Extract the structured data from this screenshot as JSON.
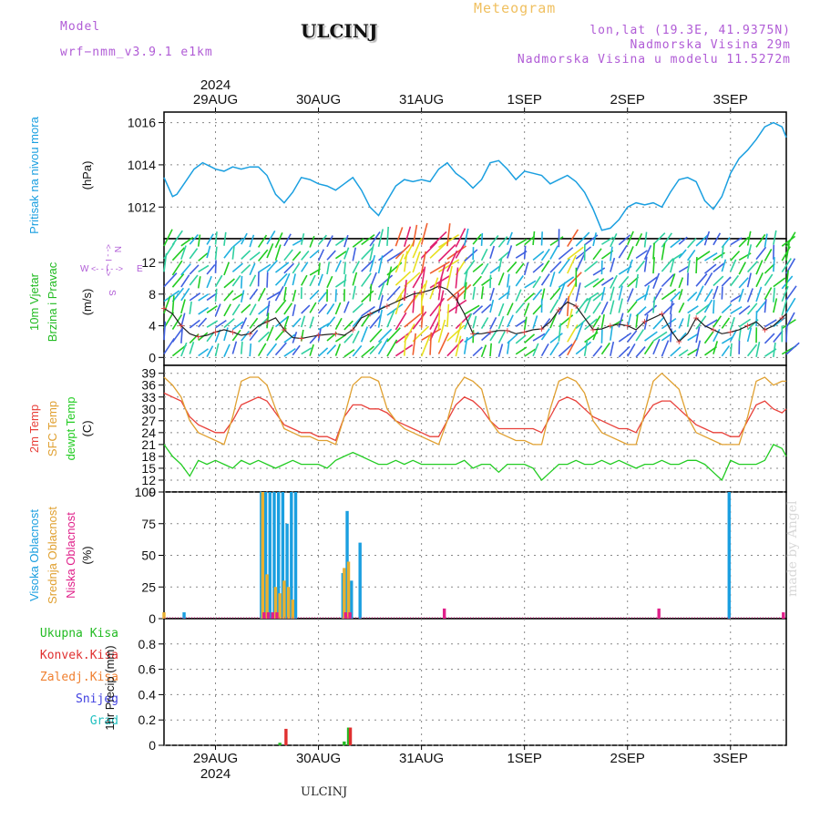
{
  "header": {
    "model_label": "Model",
    "model_name": "wrf−nmm_v3.9.1  e1km",
    "station": "ULCINJ",
    "meteogram_title": "Meteogram",
    "coords": "lon,lat (19.3E, 41.9375N)",
    "elevation": "Nadmorska Visina 29m",
    "model_elevation": "Nadmorska Visina u modelu 11.5272m"
  },
  "footer": {
    "station": "ULCINJ",
    "watermark": "made by Angel"
  },
  "colors": {
    "pressure": "#1a9fe0",
    "temp2m": "#e8403a",
    "sfc": "#e0a030",
    "dewpt": "#22cc22",
    "high_cloud": "#1a9fe0",
    "mid_cloud": "#e8b030",
    "low_cloud": "#e0208a",
    "total_precip": "#22bb22",
    "conv_precip": "#e03030",
    "frozen_precip": "#f08030",
    "snow": "#4040e0",
    "graupel": "#20c0c0"
  },
  "axes": {
    "year_top": "2024",
    "year_bottom": "2024",
    "dates": [
      "29AUG",
      "30AUG",
      "31AUG",
      "1SEP",
      "2SEP",
      "3SEP"
    ],
    "x_unit": "hours from 00 UTC 29 Aug 2024",
    "x_ticks_hours": [
      0,
      24,
      48,
      72,
      96,
      120
    ],
    "x_range_hours": [
      -12,
      133
    ]
  },
  "chart_data": [
    {
      "type": "line",
      "ylabel_lines": [
        "Pritisak na nivou mora",
        "(hPa)"
      ],
      "ylim": [
        1010.5,
        1016.5
      ],
      "yticks": [
        1012,
        1014,
        1016
      ],
      "grid": true,
      "series": [
        {
          "values": {
            "x": [
              -12,
              -10,
              -9,
              -7,
              -5,
              -3,
              -1,
              0,
              2,
              4,
              6,
              8,
              10,
              12,
              14,
              16,
              18,
              20,
              22,
              24,
              26,
              28,
              30,
              32,
              34,
              36,
              38,
              40,
              42,
              44,
              46,
              48,
              50,
              52,
              54,
              56,
              58,
              60,
              62,
              64,
              66,
              68,
              70,
              72,
              74,
              76,
              78,
              80,
              82,
              84,
              86,
              88,
              90,
              92,
              94,
              96,
              98,
              100,
              102,
              104,
              106,
              108,
              110,
              112,
              114,
              116,
              118,
              120,
              122,
              124,
              126,
              128,
              130,
              132,
              133
            ],
            "y": [
              1013.4,
              1012.5,
              1012.6,
              1013.2,
              1013.8,
              1014.1,
              1013.9,
              1013.8,
              1013.7,
              1013.9,
              1013.8,
              1013.9,
              1013.9,
              1013.5,
              1012.6,
              1012.2,
              1012.7,
              1013.4,
              1013.3,
              1013.1,
              1013.0,
              1012.8,
              1013.1,
              1013.4,
              1012.8,
              1012.0,
              1011.6,
              1012.3,
              1013.0,
              1013.3,
              1013.2,
              1013.3,
              1013.2,
              1013.8,
              1014.1,
              1013.6,
              1013.3,
              1012.9,
              1013.3,
              1014.1,
              1014.2,
              1013.8,
              1013.3,
              1013.7,
              1013.6,
              1013.5,
              1013.1,
              1013.3,
              1013.5,
              1013.2,
              1012.7,
              1011.9,
              1010.9,
              1011.0,
              1011.4,
              1012.0,
              1012.2,
              1012.1,
              1012.2,
              1012.0,
              1012.7,
              1013.3,
              1013.4,
              1013.2,
              1012.3,
              1011.9,
              1012.5,
              1013.6,
              1014.3,
              1014.7,
              1015.2,
              1015.8,
              1016.0,
              1015.8,
              1015.3
            ]
          }
        }
      ]
    },
    {
      "type": "line",
      "ylabel_lines": [
        "10m Vjetar",
        "Brzina i Pravac",
        "(m/s)"
      ],
      "ylim": [
        -1,
        15
      ],
      "yticks": [
        0,
        4,
        8,
        12
      ],
      "grid": true,
      "direction_legend": {
        "north": "N",
        "south": "S",
        "east": "E",
        "west": "W",
        "arrows": "<- - I - ->"
      },
      "series": [
        {
          "name": "wind speed",
          "x": [
            -12,
            -10,
            -8,
            -6,
            -4,
            -2,
            0,
            2,
            4,
            6,
            8,
            10,
            12,
            14,
            16,
            18,
            20,
            22,
            24,
            26,
            28,
            30,
            32,
            34,
            36,
            38,
            40,
            42,
            44,
            46,
            48,
            50,
            52,
            54,
            56,
            58,
            60,
            62,
            64,
            66,
            68,
            70,
            72,
            74,
            76,
            78,
            80,
            82,
            84,
            86,
            88,
            90,
            92,
            94,
            96,
            98,
            100,
            102,
            104,
            106,
            108,
            110,
            112,
            114,
            116,
            118,
            120,
            122,
            124,
            126,
            128,
            130,
            132,
            133
          ],
          "values": [
            6.2,
            5.5,
            4.0,
            3.0,
            2.6,
            2.8,
            3.2,
            3.5,
            3.2,
            2.8,
            3.0,
            4.0,
            4.5,
            5.0,
            3.5,
            2.5,
            2.4,
            2.6,
            2.8,
            2.9,
            3.0,
            2.8,
            3.5,
            5.0,
            5.5,
            6.0,
            6.5,
            7.0,
            7.5,
            8.0,
            8.2,
            8.5,
            9.0,
            8.6,
            7.5,
            5.5,
            3.0,
            3.0,
            3.2,
            3.4,
            3.4,
            3.0,
            3.2,
            3.5,
            3.6,
            4.5,
            6.0,
            7.0,
            6.5,
            5.0,
            3.5,
            3.6,
            4.0,
            4.2,
            4.0,
            3.5,
            4.5,
            5.0,
            5.5,
            3.5,
            2.0,
            3.0,
            5.0,
            4.0,
            3.5,
            3.0,
            3.2,
            3.5,
            4.0,
            4.5,
            3.5,
            4.0,
            5.0,
            5.5
          ]
        }
      ]
    },
    {
      "type": "line",
      "ylabel_lines": [
        "2m Temp",
        "SFC Temp",
        "dewpt Temp",
        "(C)"
      ],
      "ylim": [
        9,
        41
      ],
      "yticks": [
        9,
        12,
        15,
        18,
        21,
        24,
        27,
        30,
        33,
        36,
        39
      ],
      "grid": true,
      "series": [
        {
          "name": "2m Temp",
          "color_key": "temp2m",
          "x": [
            -12,
            -10,
            -8,
            -6,
            -4,
            -2,
            0,
            2,
            4,
            6,
            8,
            10,
            12,
            14,
            16,
            18,
            20,
            22,
            24,
            26,
            28,
            30,
            32,
            34,
            36,
            38,
            40,
            42,
            44,
            46,
            48,
            50,
            52,
            54,
            56,
            58,
            60,
            62,
            64,
            66,
            68,
            70,
            72,
            74,
            76,
            78,
            80,
            82,
            84,
            86,
            88,
            90,
            92,
            94,
            96,
            98,
            100,
            102,
            104,
            106,
            108,
            110,
            112,
            114,
            116,
            118,
            120,
            122,
            124,
            126,
            128,
            130,
            132,
            133
          ],
          "values": [
            34,
            33,
            32,
            28,
            26,
            25,
            24,
            24,
            27,
            31,
            32,
            33,
            32,
            29,
            26,
            25,
            24,
            24,
            23,
            23,
            22,
            28,
            31,
            31,
            30,
            30,
            29,
            27,
            26,
            25,
            24,
            23,
            23,
            27,
            31,
            33,
            32,
            30,
            27,
            25,
            25,
            25,
            25,
            25,
            24,
            28,
            32,
            33,
            32,
            30,
            28,
            27,
            26,
            25,
            25,
            24,
            28,
            31,
            32,
            32,
            30,
            28,
            26,
            25,
            24,
            24,
            23,
            23,
            27,
            31,
            32,
            30,
            29,
            30
          ]
        },
        {
          "name": "SFC Temp",
          "color_key": "sfc",
          "x": [
            -12,
            -10,
            -8,
            -6,
            -4,
            -2,
            0,
            2,
            4,
            6,
            8,
            10,
            12,
            14,
            16,
            18,
            20,
            22,
            24,
            26,
            28,
            30,
            32,
            34,
            36,
            38,
            40,
            42,
            44,
            46,
            48,
            50,
            52,
            54,
            56,
            58,
            60,
            62,
            64,
            66,
            68,
            70,
            72,
            74,
            76,
            78,
            80,
            82,
            84,
            86,
            88,
            90,
            92,
            94,
            96,
            98,
            100,
            102,
            104,
            106,
            108,
            110,
            112,
            114,
            116,
            118,
            120,
            122,
            124,
            126,
            128,
            130,
            132,
            133
          ],
          "values": [
            38,
            36,
            33,
            27,
            24,
            23,
            22,
            21,
            28,
            37,
            38,
            38,
            36,
            30,
            25,
            24,
            23,
            23,
            22,
            22,
            21,
            28,
            36,
            38,
            38,
            37,
            30,
            27,
            25,
            24,
            23,
            22,
            21,
            27,
            35,
            38,
            37,
            35,
            27,
            24,
            23,
            22,
            22,
            21,
            21,
            30,
            37,
            38,
            37,
            34,
            27,
            24,
            23,
            22,
            21,
            21,
            29,
            37,
            39,
            37,
            35,
            28,
            24,
            23,
            22,
            21,
            21,
            21,
            28,
            37,
            38,
            36,
            37,
            37
          ]
        },
        {
          "name": "dewpt Temp",
          "color_key": "dewpt",
          "x": [
            -12,
            -10,
            -8,
            -6,
            -4,
            -2,
            0,
            2,
            4,
            6,
            8,
            10,
            12,
            14,
            16,
            18,
            20,
            22,
            24,
            26,
            28,
            30,
            32,
            34,
            36,
            38,
            40,
            42,
            44,
            46,
            48,
            50,
            52,
            54,
            56,
            58,
            60,
            62,
            64,
            66,
            68,
            70,
            72,
            74,
            76,
            78,
            80,
            82,
            84,
            86,
            88,
            90,
            92,
            94,
            96,
            98,
            100,
            102,
            104,
            106,
            108,
            110,
            112,
            114,
            116,
            118,
            120,
            122,
            124,
            126,
            128,
            130,
            132,
            133
          ],
          "values": [
            21,
            18,
            16,
            13,
            17,
            16,
            17,
            16,
            15,
            17,
            16,
            17,
            16,
            15,
            16,
            17,
            16,
            16,
            16,
            15,
            17,
            18,
            19,
            18,
            17,
            16,
            16,
            17,
            16,
            17,
            16,
            16,
            16,
            16,
            16,
            17,
            15,
            16,
            16,
            14,
            16,
            16,
            16,
            15,
            12,
            14,
            16,
            16,
            17,
            16,
            16,
            17,
            16,
            17,
            16,
            15,
            16,
            16,
            17,
            16,
            16,
            17,
            17,
            16,
            14,
            12,
            17,
            16,
            16,
            16,
            17,
            21,
            20,
            18
          ]
        }
      ]
    },
    {
      "type": "bar",
      "ylabel_lines": [
        "Visoka Oblacnost",
        "Srednja Oblacnost",
        "Niska Oblacnost",
        "(%)"
      ],
      "ylim": [
        0,
        100
      ],
      "yticks": [
        0,
        25,
        50,
        75,
        100
      ],
      "grid": true,
      "series": [
        {
          "name": "Visoka Oblacnost",
          "color_key": "high_cloud",
          "x": [
            -7,
            11,
            12,
            13,
            14,
            15,
            16,
            17,
            18,
            19,
            30,
            31,
            32,
            34,
            120
          ],
          "values": [
            5,
            100,
            100,
            100,
            100,
            100,
            100,
            75,
            100,
            100,
            36,
            85,
            30,
            60,
            100
          ]
        },
        {
          "name": "Srednja Oblacnost",
          "color_key": "mid_cloud",
          "x": [
            -12,
            11,
            12,
            14,
            15,
            16,
            17,
            18,
            30,
            31
          ],
          "values": [
            5,
            100,
            35,
            25,
            20,
            30,
            25,
            15,
            40,
            45
          ]
        },
        {
          "name": "Niska Oblacnost",
          "color_key": "low_cloud",
          "x": [
            11,
            12,
            13,
            14,
            30,
            31,
            53,
            103,
            132
          ],
          "values": [
            5,
            5,
            5,
            5,
            5,
            5,
            8,
            8,
            5
          ]
        }
      ]
    },
    {
      "type": "bar",
      "ylabel_lines": [
        "Ukupna Kisa",
        "Konvek.Kisa",
        "Zaledj.Kisa",
        "Snijeg",
        "Grad",
        "1hr Precip (mm)"
      ],
      "ylim": [
        0,
        1.0
      ],
      "yticks": [
        0,
        0.2,
        0.4,
        0.6,
        0.8
      ],
      "grid": true,
      "series": [
        {
          "name": "Ukupna Kisa",
          "color_key": "total_precip",
          "x": [
            15,
            30,
            31
          ],
          "values": [
            0.02,
            0.03,
            0.14
          ]
        },
        {
          "name": "Konvek.Kisa",
          "color_key": "conv_precip",
          "x": [
            16,
            31
          ],
          "values": [
            0.13,
            0.14
          ]
        },
        {
          "name": "Zaledj.Kisa",
          "color_key": "frozen_precip",
          "x": [],
          "values": []
        },
        {
          "name": "Snijeg",
          "color_key": "snow",
          "x": [],
          "values": []
        },
        {
          "name": "Grad",
          "color_key": "graupel",
          "x": [],
          "values": []
        }
      ]
    }
  ]
}
